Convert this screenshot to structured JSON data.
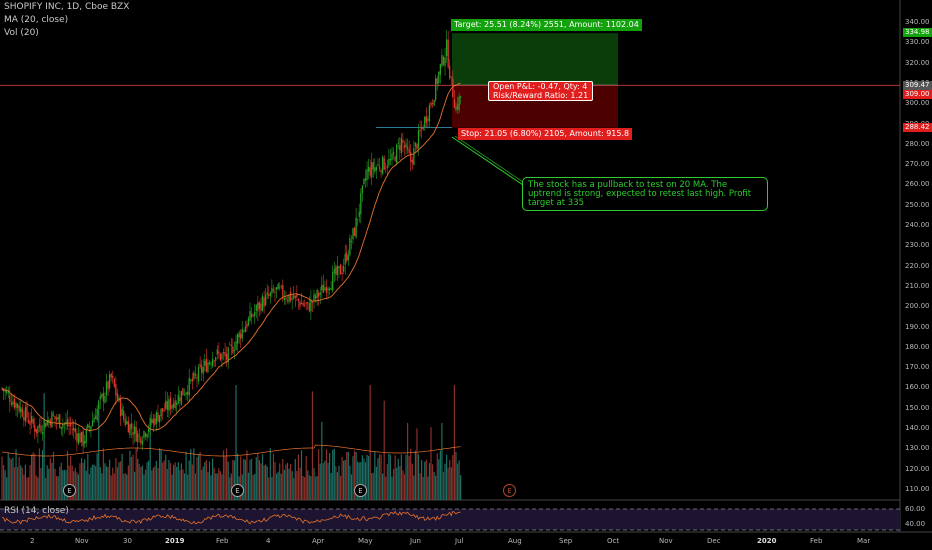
{
  "header": {
    "symbol": "SHOPIFY INC, 1D, Cboe BZX",
    "ma_label": "MA (20, close)",
    "vol_label": "Vol (20)",
    "rsi_label": "RSI (14, close)"
  },
  "trade": {
    "target_label": "Target: 25.51 (8.24%) 2551, Amount: 1102.04",
    "stop_label": "Stop: 21.05 (6.80%) 2105, Amount: 915.8",
    "pnl_label": "Open P&L: -0.47, Qty: 4",
    "rr_label": "Risk/Reward Ratio: 1.21",
    "entry": 309.47,
    "target": 334.98,
    "stop": 288.42
  },
  "callout": {
    "text": "The stock has a pullback to test on 20 MA. The uptrend is strong, expected to retest last high. Profit target at 335"
  },
  "price_axis": {
    "ticks": [
      "340.00",
      "330.00",
      "320.00",
      "310.00",
      "300.00",
      "290.00",
      "280.00",
      "270.00",
      "260.00",
      "250.00",
      "240.00",
      "230.00",
      "220.00",
      "210.00",
      "200.00",
      "190.00",
      "180.00",
      "170.00",
      "160.00",
      "150.00",
      "140.00",
      "130.00",
      "120.00",
      "110.00"
    ],
    "badges": [
      {
        "label": "334.98",
        "color": "#13a10e"
      },
      {
        "label": "309.47",
        "color": "#555555"
      },
      {
        "label": "309.00",
        "color": "#e01e1e"
      },
      {
        "label": "288.42",
        "color": "#e01e1e"
      }
    ],
    "rsi_ticks": [
      "60.00",
      "40.00"
    ]
  },
  "time_axis": {
    "labels": [
      {
        "text": "2",
        "bold": false
      },
      {
        "text": "Nov",
        "bold": false
      },
      {
        "text": "30",
        "bold": false
      },
      {
        "text": "2019",
        "bold": true
      },
      {
        "text": "Feb",
        "bold": false
      },
      {
        "text": "4",
        "bold": false
      },
      {
        "text": "Apr",
        "bold": false
      },
      {
        "text": "May",
        "bold": false
      },
      {
        "text": "Jun",
        "bold": false
      },
      {
        "text": "Jul",
        "bold": false
      },
      {
        "text": "Aug",
        "bold": false
      },
      {
        "text": "Sep",
        "bold": false
      },
      {
        "text": "Oct",
        "bold": false
      },
      {
        "text": "Nov",
        "bold": false
      },
      {
        "text": "Dec",
        "bold": false
      },
      {
        "text": "2020",
        "bold": true
      },
      {
        "text": "Feb",
        "bold": false
      },
      {
        "text": "Mar",
        "bold": false
      }
    ]
  },
  "earnings_marker": "E",
  "colors": {
    "up": "#26a126",
    "down": "#e03a2e",
    "ma": "#e8722a",
    "rsi": "#e8722a",
    "vol_up": "#1e6e64",
    "vol_down": "#8c2f2a",
    "target_zone": "#0b3d0b",
    "stop_zone": "#4d0000"
  },
  "chart_data": {
    "type": "candlestick",
    "title": "SHOPIFY INC, 1D, Cboe BZX",
    "ylim": [
      105,
      345
    ],
    "anchors": [
      [
        0,
        160
      ],
      [
        12,
        150
      ],
      [
        22,
        140
      ],
      [
        32,
        146
      ],
      [
        44,
        141
      ],
      [
        52,
        134
      ],
      [
        60,
        148
      ],
      [
        70,
        165
      ],
      [
        78,
        145
      ],
      [
        88,
        136
      ],
      [
        100,
        147
      ],
      [
        112,
        155
      ],
      [
        124,
        165
      ],
      [
        136,
        177
      ],
      [
        144,
        175
      ],
      [
        154,
        189
      ],
      [
        166,
        202
      ],
      [
        176,
        208
      ],
      [
        188,
        204
      ],
      [
        196,
        200
      ],
      [
        208,
        211
      ],
      [
        218,
        219
      ],
      [
        226,
        238
      ],
      [
        234,
        267
      ],
      [
        242,
        270
      ],
      [
        250,
        272
      ],
      [
        256,
        282
      ],
      [
        262,
        272
      ],
      [
        270,
        290
      ],
      [
        276,
        303
      ],
      [
        281,
        318
      ],
      [
        285,
        328
      ],
      [
        288,
        310
      ],
      [
        291,
        298
      ],
      [
        294,
        304
      ]
    ]
  }
}
